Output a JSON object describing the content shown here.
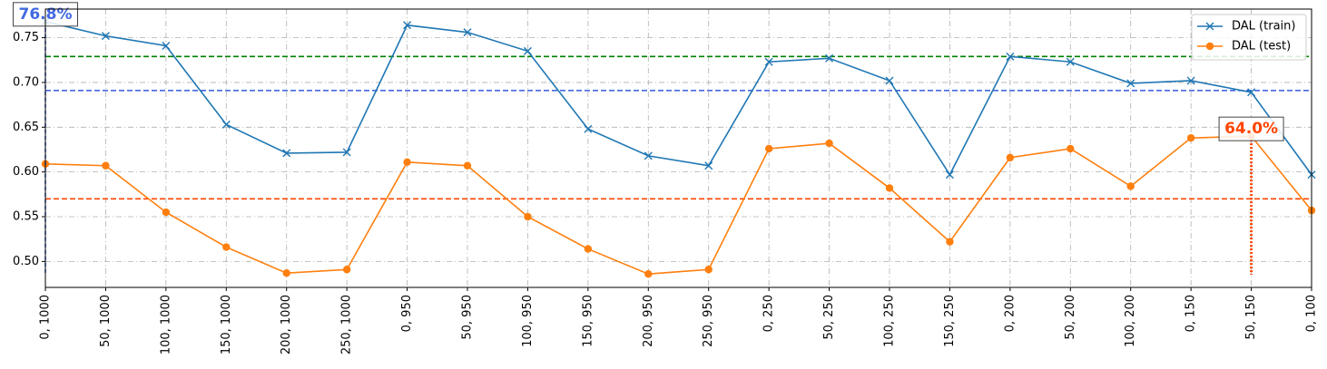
{
  "chart_data": {
    "type": "line",
    "categories": [
      "0, 1000",
      "50, 1000",
      "100, 1000",
      "150, 1000",
      "200, 1000",
      "250, 1000",
      "0, 950",
      "50, 950",
      "100, 950",
      "150, 950",
      "200, 950",
      "250, 950",
      "0, 250",
      "50, 250",
      "100, 250",
      "150, 250",
      "0, 200",
      "50, 200",
      "100, 200",
      "0, 150",
      "50, 150",
      "0, 100"
    ],
    "series": [
      {
        "name": "DAL (train)",
        "color": "#1f77b4",
        "marker": "x",
        "values": [
          0.768,
          0.752,
          0.741,
          0.653,
          0.621,
          0.622,
          0.764,
          0.756,
          0.735,
          0.648,
          0.618,
          0.607,
          0.723,
          0.727,
          0.702,
          0.597,
          0.729,
          0.723,
          0.699,
          0.702,
          0.689,
          0.597
        ]
      },
      {
        "name": "DAL (test)",
        "color": "#ff7f0e",
        "marker": "circle",
        "values": [
          0.609,
          0.607,
          0.555,
          0.516,
          0.487,
          0.491,
          0.611,
          0.607,
          0.55,
          0.514,
          0.486,
          0.491,
          0.626,
          0.632,
          0.582,
          0.522,
          0.616,
          0.626,
          0.584,
          0.638,
          0.64,
          0.557
        ]
      }
    ],
    "reference_lines": [
      {
        "y": 0.729,
        "color": "#008000",
        "style": "dashed"
      },
      {
        "y": 0.691,
        "color": "#4169e1",
        "style": "dashed"
      },
      {
        "y": 0.57,
        "color": "#ff4500",
        "style": "dashed"
      }
    ],
    "annotations": [
      {
        "text": "76.8%",
        "category_index": 0,
        "value": 0.768,
        "color": "#4169e1",
        "series": "DAL (train)",
        "vline_style": "dashed"
      },
      {
        "text": "64.0%",
        "category_index": 20,
        "value": 0.64,
        "color": "#ff4500",
        "series": "DAL (test)",
        "vline_style": "dotted"
      }
    ],
    "yticks": [
      0.5,
      0.55,
      0.6,
      0.65,
      0.7,
      0.75
    ],
    "ytick_labels": [
      "0.50",
      "0.55",
      "0.60",
      "0.65",
      "0.70",
      "0.75"
    ],
    "ylim": [
      0.471,
      0.782
    ],
    "grid": true,
    "grid_style": "dashdot",
    "legend_position": "top-right",
    "title": "",
    "xlabel": "",
    "ylabel": ""
  }
}
